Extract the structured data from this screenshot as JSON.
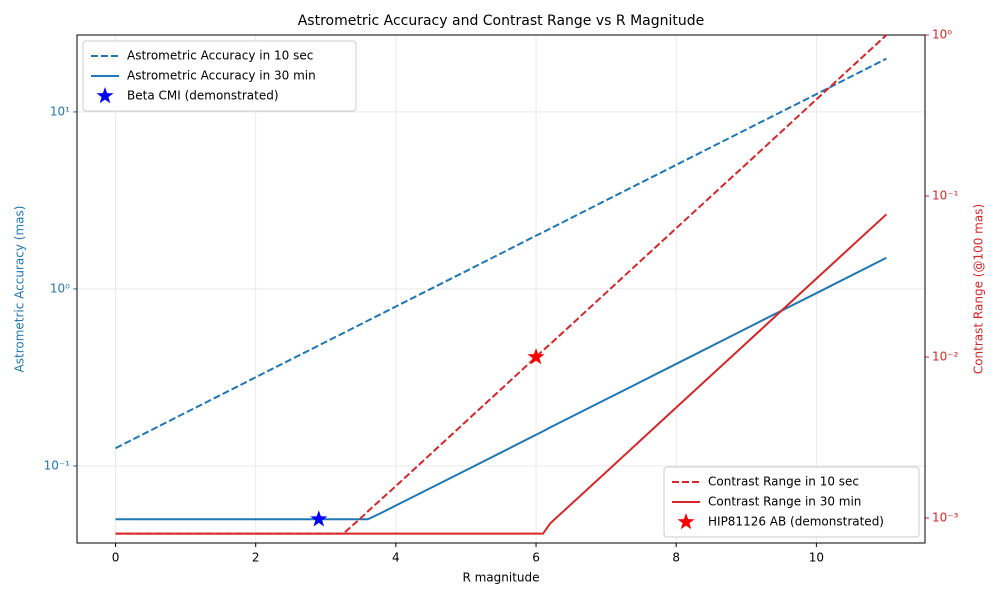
{
  "chart_data": {
    "type": "line",
    "title": "Astrometric Accuracy and Contrast Range vs R Magnitude",
    "xlabel": "R magnitude",
    "ylabel": "Astrometric Accuracy (mas)",
    "y2label": "Contrast Range (@100 mas)",
    "yscale": "log",
    "y2scale": "log",
    "grid": true,
    "x": [
      0,
      1,
      2,
      3,
      3.25,
      3.5,
      3.6,
      3.8,
      4,
      5,
      6,
      6.1,
      6.2,
      7,
      8,
      9,
      10,
      11
    ],
    "xlim": [
      -0.55,
      11.55
    ],
    "xticks": [
      0,
      2,
      4,
      6,
      8,
      10
    ],
    "ylim": [
      0.0367,
      27.2
    ],
    "yticks": [
      {
        "value": 0.1,
        "label": "10⁻¹"
      },
      {
        "value": 1,
        "label": "10⁰"
      },
      {
        "value": 10,
        "label": "10¹"
      }
    ],
    "y2lim": [
      0.0007,
      1.0
    ],
    "y2ticks": [
      {
        "value": 0.001,
        "label": "10⁻³"
      },
      {
        "value": 0.01,
        "label": "10⁻²"
      },
      {
        "value": 0.1,
        "label": "10⁻¹"
      },
      {
        "value": 1,
        "label": "10⁰"
      }
    ],
    "series": [
      {
        "name": "Astrometric Accuracy in 10 sec",
        "color": "#1f77b4",
        "linestyle": "dashed",
        "axis": "y",
        "values": [
          0.126,
          0.2,
          0.317,
          0.502,
          0.563,
          0.632,
          0.662,
          0.726,
          0.796,
          1.26,
          2.0,
          2.09,
          2.19,
          3.17,
          5.02,
          7.96,
          12.6,
          20.0
        ]
      },
      {
        "name": "Astrometric Accuracy in 30 min",
        "color": "#1f77b4",
        "linestyle": "solid",
        "axis": "y",
        "values": [
          0.05,
          0.05,
          0.05,
          0.05,
          0.05,
          0.05,
          0.05,
          0.0545,
          0.0598,
          0.0946,
          0.15,
          0.157,
          0.165,
          0.238,
          0.377,
          0.598,
          0.946,
          1.5
        ]
      },
      {
        "name": "Contrast Range in 10 sec",
        "color": "#d62728",
        "linestyle": "dashed",
        "axis": "y2",
        "values": [
          0.0008,
          0.0008,
          0.0008,
          0.0008,
          0.0008,
          0.001,
          0.0011,
          0.00132,
          0.00158,
          0.00398,
          0.01,
          0.011,
          0.012,
          0.0251,
          0.0631,
          0.158,
          0.398,
          1.0
        ]
      },
      {
        "name": "Contrast Range in 30 min",
        "color": "#d62728",
        "linestyle": "solid",
        "axis": "y2",
        "values": [
          0.0008,
          0.0008,
          0.0008,
          0.0008,
          0.0008,
          0.0008,
          0.0008,
          0.0008,
          0.0008,
          0.0008,
          0.0008,
          0.0008,
          0.000925,
          0.00193,
          0.00486,
          0.0122,
          0.0307,
          0.077
        ]
      }
    ],
    "markers": [
      {
        "name": "Beta CMI (demonstrated)",
        "color": "#0000ff",
        "axis": "y",
        "x": 2.9,
        "value": 0.05
      },
      {
        "name": "HIP81126 AB (demonstrated)",
        "color": "#ff0000",
        "axis": "y2",
        "x": 6,
        "value": 0.01
      }
    ],
    "legend_loc": {
      "y": "upper left",
      "y2": "lower right"
    }
  }
}
